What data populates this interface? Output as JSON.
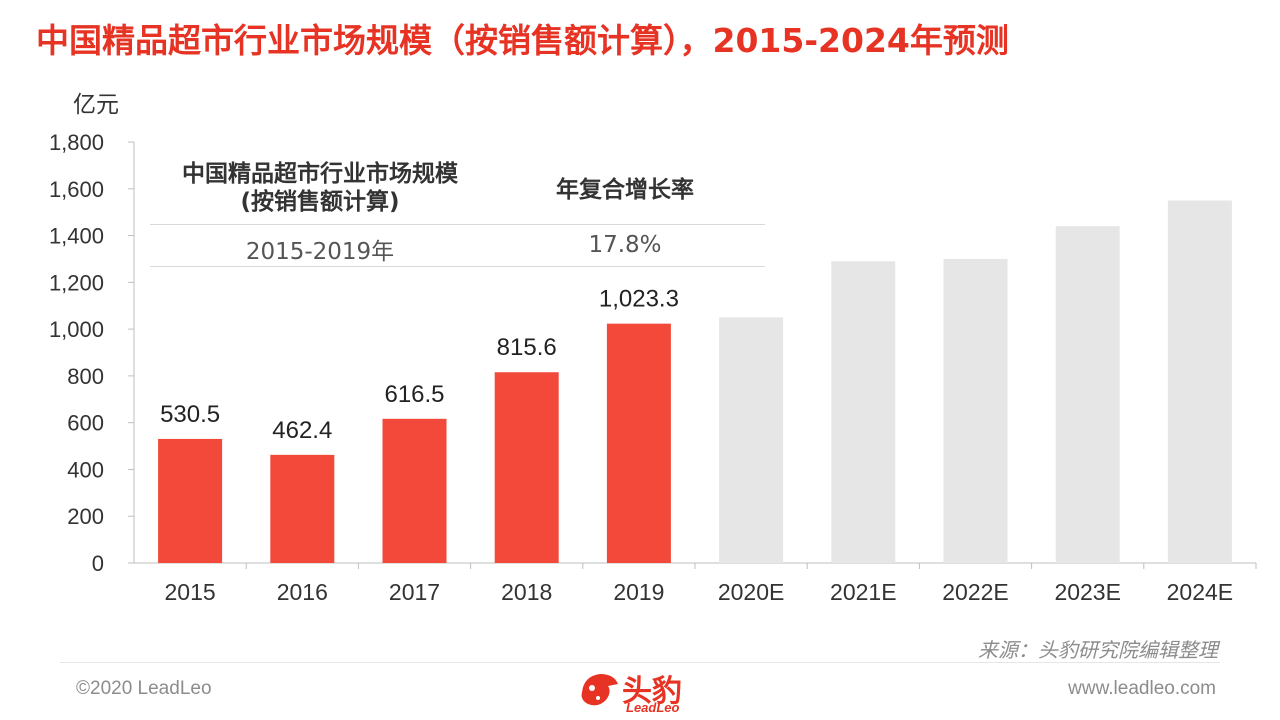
{
  "title": "中国精品超市行业市场规模（按销售额计算），2015-2024年预测",
  "summary": {
    "header_left_line1": "中国精品超市行业市场规模",
    "header_left_line2": "(按销售额计算)",
    "header_right": "年复合增长率",
    "period": "2015-2019年",
    "cagr": "17.8%"
  },
  "source": "来源：头豹研究院编辑整理",
  "footer": {
    "copyright": "©2020 LeadLeo",
    "website": "www.leadleo.com"
  },
  "logo": {
    "name": "头豹",
    "sub": "LeadLeo",
    "icon": "leopard-head-icon"
  },
  "colors": {
    "accent": "#e63323",
    "actual_bar": "#f2493b",
    "forecast_bar": "#e6e6e6"
  },
  "chart_data": {
    "type": "bar",
    "ylabel": "亿元",
    "ylim": [
      0,
      1800
    ],
    "yticks": [
      0,
      200,
      400,
      600,
      800,
      1000,
      1200,
      1400,
      1600,
      1800
    ],
    "ytick_labels": [
      "0",
      "200",
      "400",
      "600",
      "800",
      "1,000",
      "1,200",
      "1,400",
      "1,600",
      "1,800"
    ],
    "categories": [
      "2015",
      "2016",
      "2017",
      "2018",
      "2019",
      "2020E",
      "2021E",
      "2022E",
      "2023E",
      "2024E"
    ],
    "values": [
      530.5,
      462.4,
      616.5,
      815.6,
      1023.3,
      1050,
      1290,
      1300,
      1440,
      1550
    ],
    "value_labels": [
      "530.5",
      "462.4",
      "616.5",
      "815.6",
      "1,023.3",
      "",
      "",
      "",
      "",
      ""
    ],
    "forecast": [
      false,
      false,
      false,
      false,
      false,
      true,
      true,
      true,
      true,
      true
    ],
    "grid": false
  }
}
